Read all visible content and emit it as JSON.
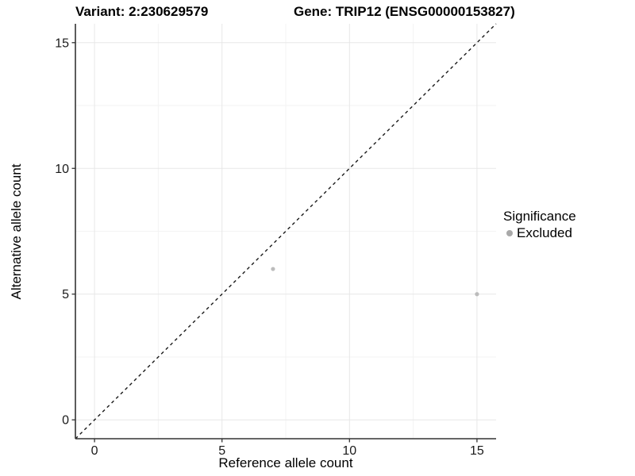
{
  "colors": {
    "background": "#ffffff",
    "grid_major": "#e7e7e7",
    "grid_minor": "#f3f3f3",
    "axis": "#333333",
    "tick_text": "#1a1a1a",
    "title_text": "#000000",
    "point_excluded": "#bcbcbc",
    "legend_key": "#a9a9a9",
    "reference_line": "#1a1a1a"
  },
  "chart_data": {
    "type": "scatter",
    "title_left": "Variant: 2:230629579",
    "title_right": "Gene: TRIP12 (ENSG00000153827)",
    "xlabel": "Reference allele count",
    "ylabel": "Alternative allele count",
    "xlim": [
      0,
      15
    ],
    "ylim": [
      0,
      15
    ],
    "x_ticks": [
      0,
      5,
      10,
      15
    ],
    "y_ticks": [
      0,
      5,
      10,
      15
    ],
    "x_minor_ticks": [
      2.5,
      7.5,
      12.5
    ],
    "y_minor_ticks": [
      2.5,
      7.5,
      12.5
    ],
    "grid": "major+minor",
    "reference_line": {
      "type": "identity y=x",
      "style": "dashed"
    },
    "series": [
      {
        "name": "Excluded",
        "points": [
          {
            "x": 7,
            "y": 6
          },
          {
            "x": 15,
            "y": 5
          }
        ]
      }
    ],
    "legend": {
      "title": "Significance",
      "position": "right",
      "items": [
        {
          "label": "Excluded"
        }
      ]
    }
  }
}
